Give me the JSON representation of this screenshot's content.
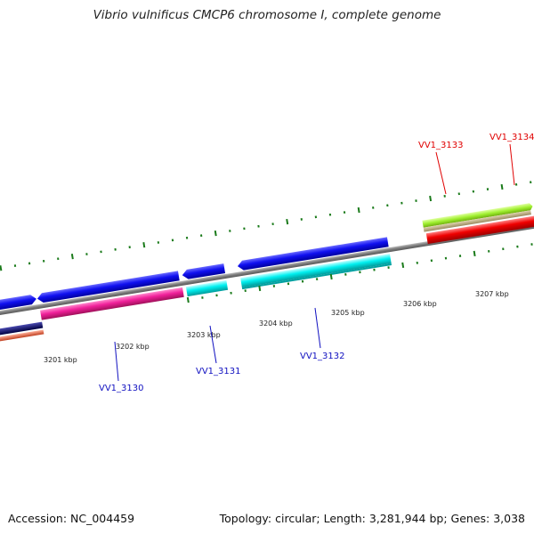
{
  "title": "Vibrio vulnificus CMCP6 chromosome I, complete genome",
  "accession": "Accession: NC_004459",
  "summary": "Topology: circular; Length: 3,281,944 bp; Genes: 3,038",
  "kbp_labels": [
    "3201 kbp",
    "3202 kbp",
    "3203 kbp",
    "3204 kbp",
    "3205 kbp",
    "3206 kbp",
    "3207 kbp"
  ],
  "gene_labels": [
    {
      "name": "VV1_3130",
      "color": "#1010c0"
    },
    {
      "name": "VV1_3131",
      "color": "#1010c0"
    },
    {
      "name": "VV1_3132",
      "color": "#1010c0"
    },
    {
      "name": "VV1_3133",
      "color": "#e00000"
    },
    {
      "name": "VV1_3134",
      "color": "#e00000"
    }
  ],
  "colors": {
    "backbone": "#808080",
    "tick": "#1a7a1a",
    "blue_gene": "#0000e0",
    "cyan_gene": "#00e0e0",
    "pink_gene": "#f0209a",
    "red_gene": "#f00000",
    "lime_gene": "#a0f030",
    "tan_gene": "#c0b080",
    "navy_gene": "#101070",
    "salmon_gene": "#f06a4a"
  }
}
